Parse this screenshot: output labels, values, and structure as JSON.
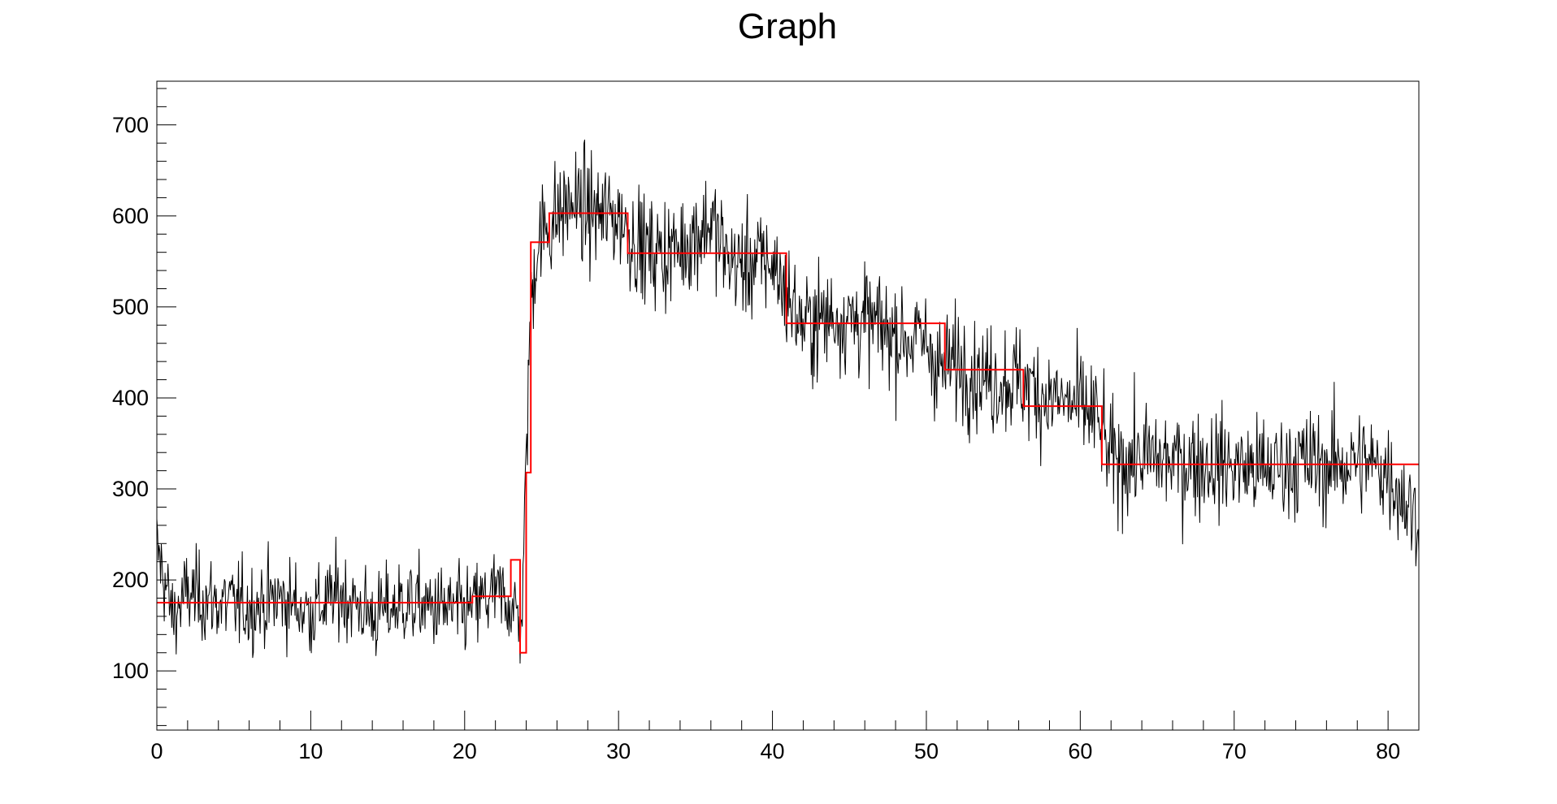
{
  "chart_data": {
    "type": "line",
    "title": "Graph",
    "xlabel": "",
    "ylabel": "",
    "xlim": [
      0,
      82
    ],
    "ylim": [
      35,
      748
    ],
    "x_ticks": [
      "0",
      "10",
      "20",
      "30",
      "40",
      "50",
      "60",
      "70",
      "80"
    ],
    "y_ticks": [
      "100",
      "200",
      "300",
      "400",
      "500",
      "600",
      "700"
    ],
    "grid": false,
    "legend": "none",
    "colors": {
      "data": "#000000",
      "fit": "#ff0000",
      "axis": "#000000",
      "background": "#ffffff"
    },
    "series": [
      {
        "style": "noisy-data",
        "color": "#000000",
        "x": [
          0,
          0.5,
          1,
          2,
          4,
          6,
          8,
          10,
          12,
          14,
          16,
          18,
          20,
          22,
          23,
          23.7,
          24,
          24.2,
          24.6,
          25,
          26,
          27,
          28,
          29,
          30,
          31,
          32,
          33,
          34,
          35,
          36,
          37,
          38,
          39,
          40,
          41,
          42,
          44,
          46,
          48,
          50,
          51,
          52,
          54,
          56,
          57,
          58,
          60,
          61,
          62,
          64,
          66,
          68,
          70,
          72,
          74,
          76,
          78,
          80,
          81,
          82
        ],
        "y": [
          235,
          200,
          160,
          185,
          175,
          170,
          180,
          165,
          185,
          160,
          175,
          170,
          165,
          185,
          175,
          150,
          320,
          470,
          560,
          580,
          600,
          615,
          605,
          600,
          600,
          575,
          560,
          560,
          565,
          580,
          595,
          555,
          545,
          550,
          550,
          510,
          480,
          490,
          485,
          470,
          460,
          430,
          440,
          420,
          420,
          410,
          400,
          390,
          380,
          330,
          335,
          330,
          330,
          325,
          320,
          330,
          325,
          330,
          320,
          290,
          265
        ]
      },
      {
        "style": "step-fit",
        "color": "#ff0000",
        "x": [
          0,
          20.5,
          23,
          23.6,
          24,
          24.3,
          25.5,
          30.6,
          40.9,
          51.2,
          56.3,
          61.4,
          82
        ],
        "y": [
          175,
          182,
          222,
          120,
          318,
          571,
          603,
          559,
          482,
          431,
          391,
          327,
          327
        ]
      }
    ]
  }
}
